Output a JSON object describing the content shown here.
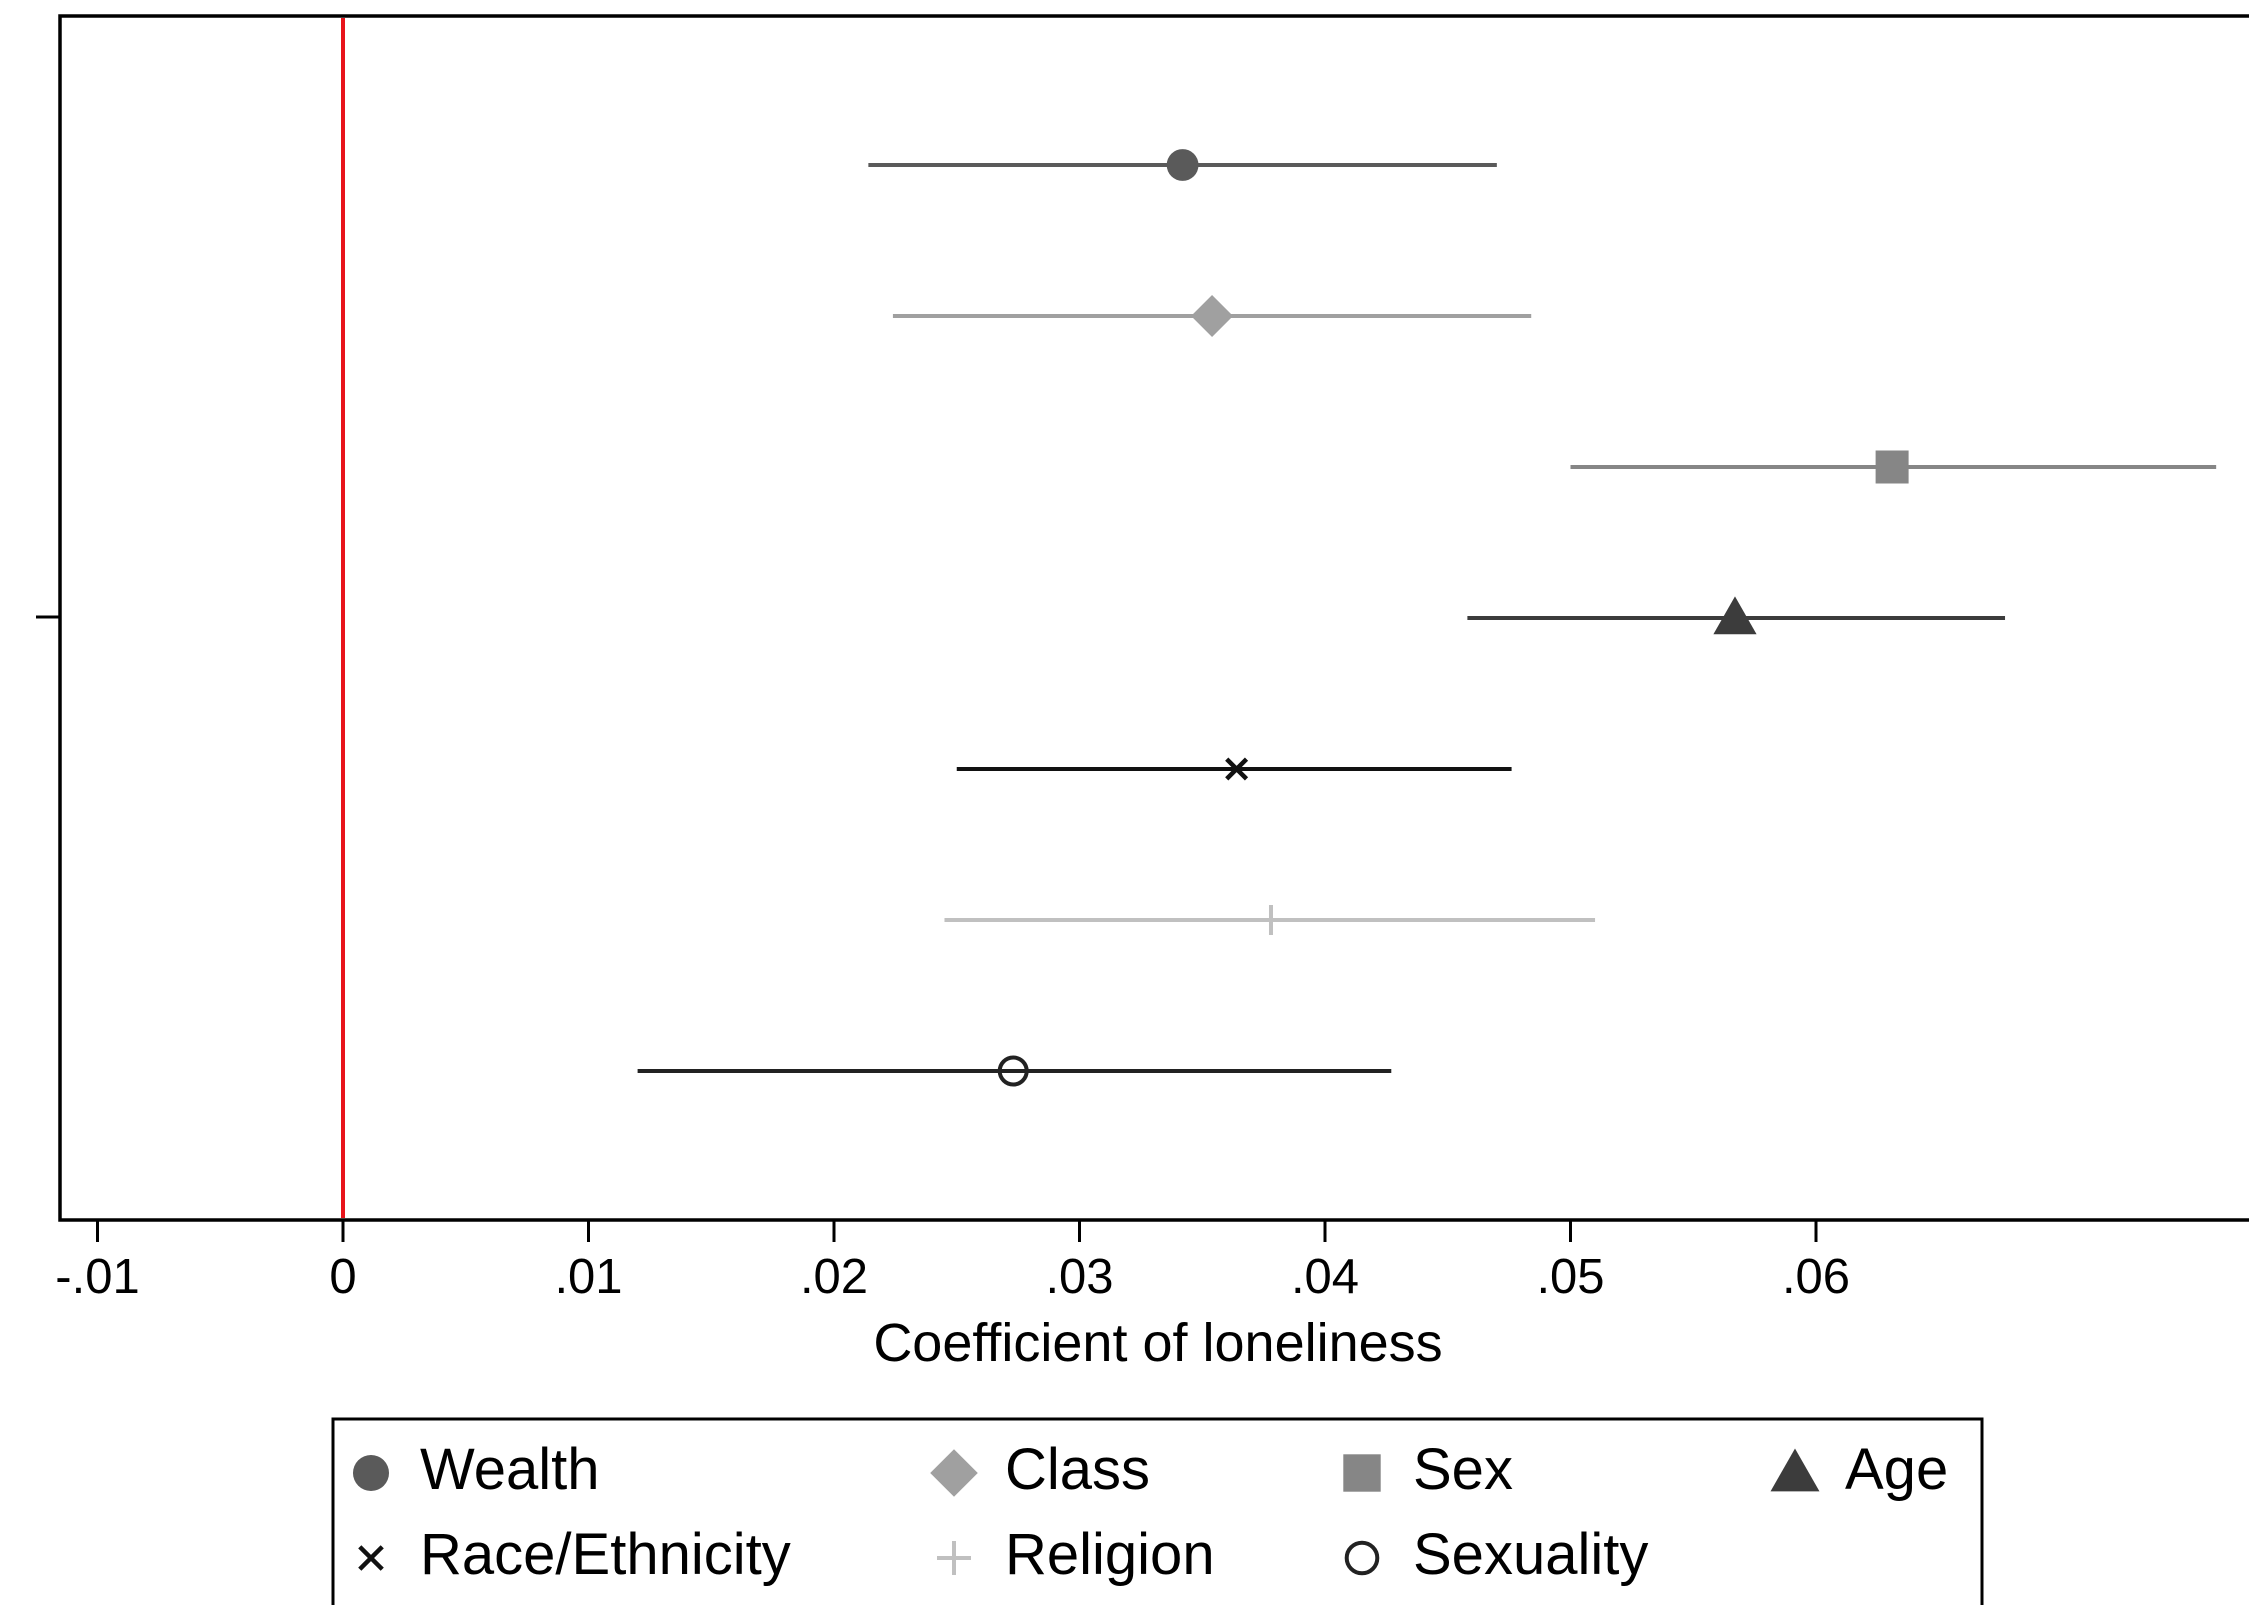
{
  "chart_data": {
    "type": "scatter",
    "subtype": "coefficient-plot-with-confidence-intervals",
    "xlabel": "Coefficient of loneliness",
    "ylabel": "",
    "xlim": [
      -0.0115,
      0.0772
    ],
    "x_ticks": [
      -0.01,
      0,
      0.01,
      0.02,
      0.03,
      0.04,
      0.05,
      0.06
    ],
    "x_tick_labels": [
      "-.01",
      "0",
      ".01",
      ".02",
      ".03",
      ".04",
      ".05",
      ".06"
    ],
    "reference_line": {
      "x": 0,
      "color": "#e8141b"
    },
    "grid": false,
    "legend_position": "bottom",
    "series": [
      {
        "name": "Wealth",
        "marker": "circle-filled",
        "color": "#5a5a5a",
        "estimate": 0.0342,
        "ci_low": 0.0214,
        "ci_high": 0.047
      },
      {
        "name": "Class",
        "marker": "diamond-filled",
        "color": "#a0a0a0",
        "estimate": 0.0354,
        "ci_low": 0.0224,
        "ci_high": 0.0484
      },
      {
        "name": "Sex",
        "marker": "square-filled",
        "color": "#868686",
        "estimate": 0.0631,
        "ci_low": 0.05,
        "ci_high": 0.0763
      },
      {
        "name": "Age",
        "marker": "triangle-filled",
        "color": "#3c3c3c",
        "estimate": 0.0567,
        "ci_low": 0.0458,
        "ci_high": 0.0677
      },
      {
        "name": "Race/Ethnicity",
        "marker": "x",
        "color": "#111111",
        "estimate": 0.0364,
        "ci_low": 0.025,
        "ci_high": 0.0476
      },
      {
        "name": "Religion",
        "marker": "plus",
        "color": "#c0c0c0",
        "estimate": 0.0378,
        "ci_low": 0.0245,
        "ci_high": 0.051
      },
      {
        "name": "Sexuality",
        "marker": "circle-hollow",
        "color": "#222222",
        "estimate": 0.0273,
        "ci_low": 0.012,
        "ci_high": 0.0427
      }
    ]
  }
}
